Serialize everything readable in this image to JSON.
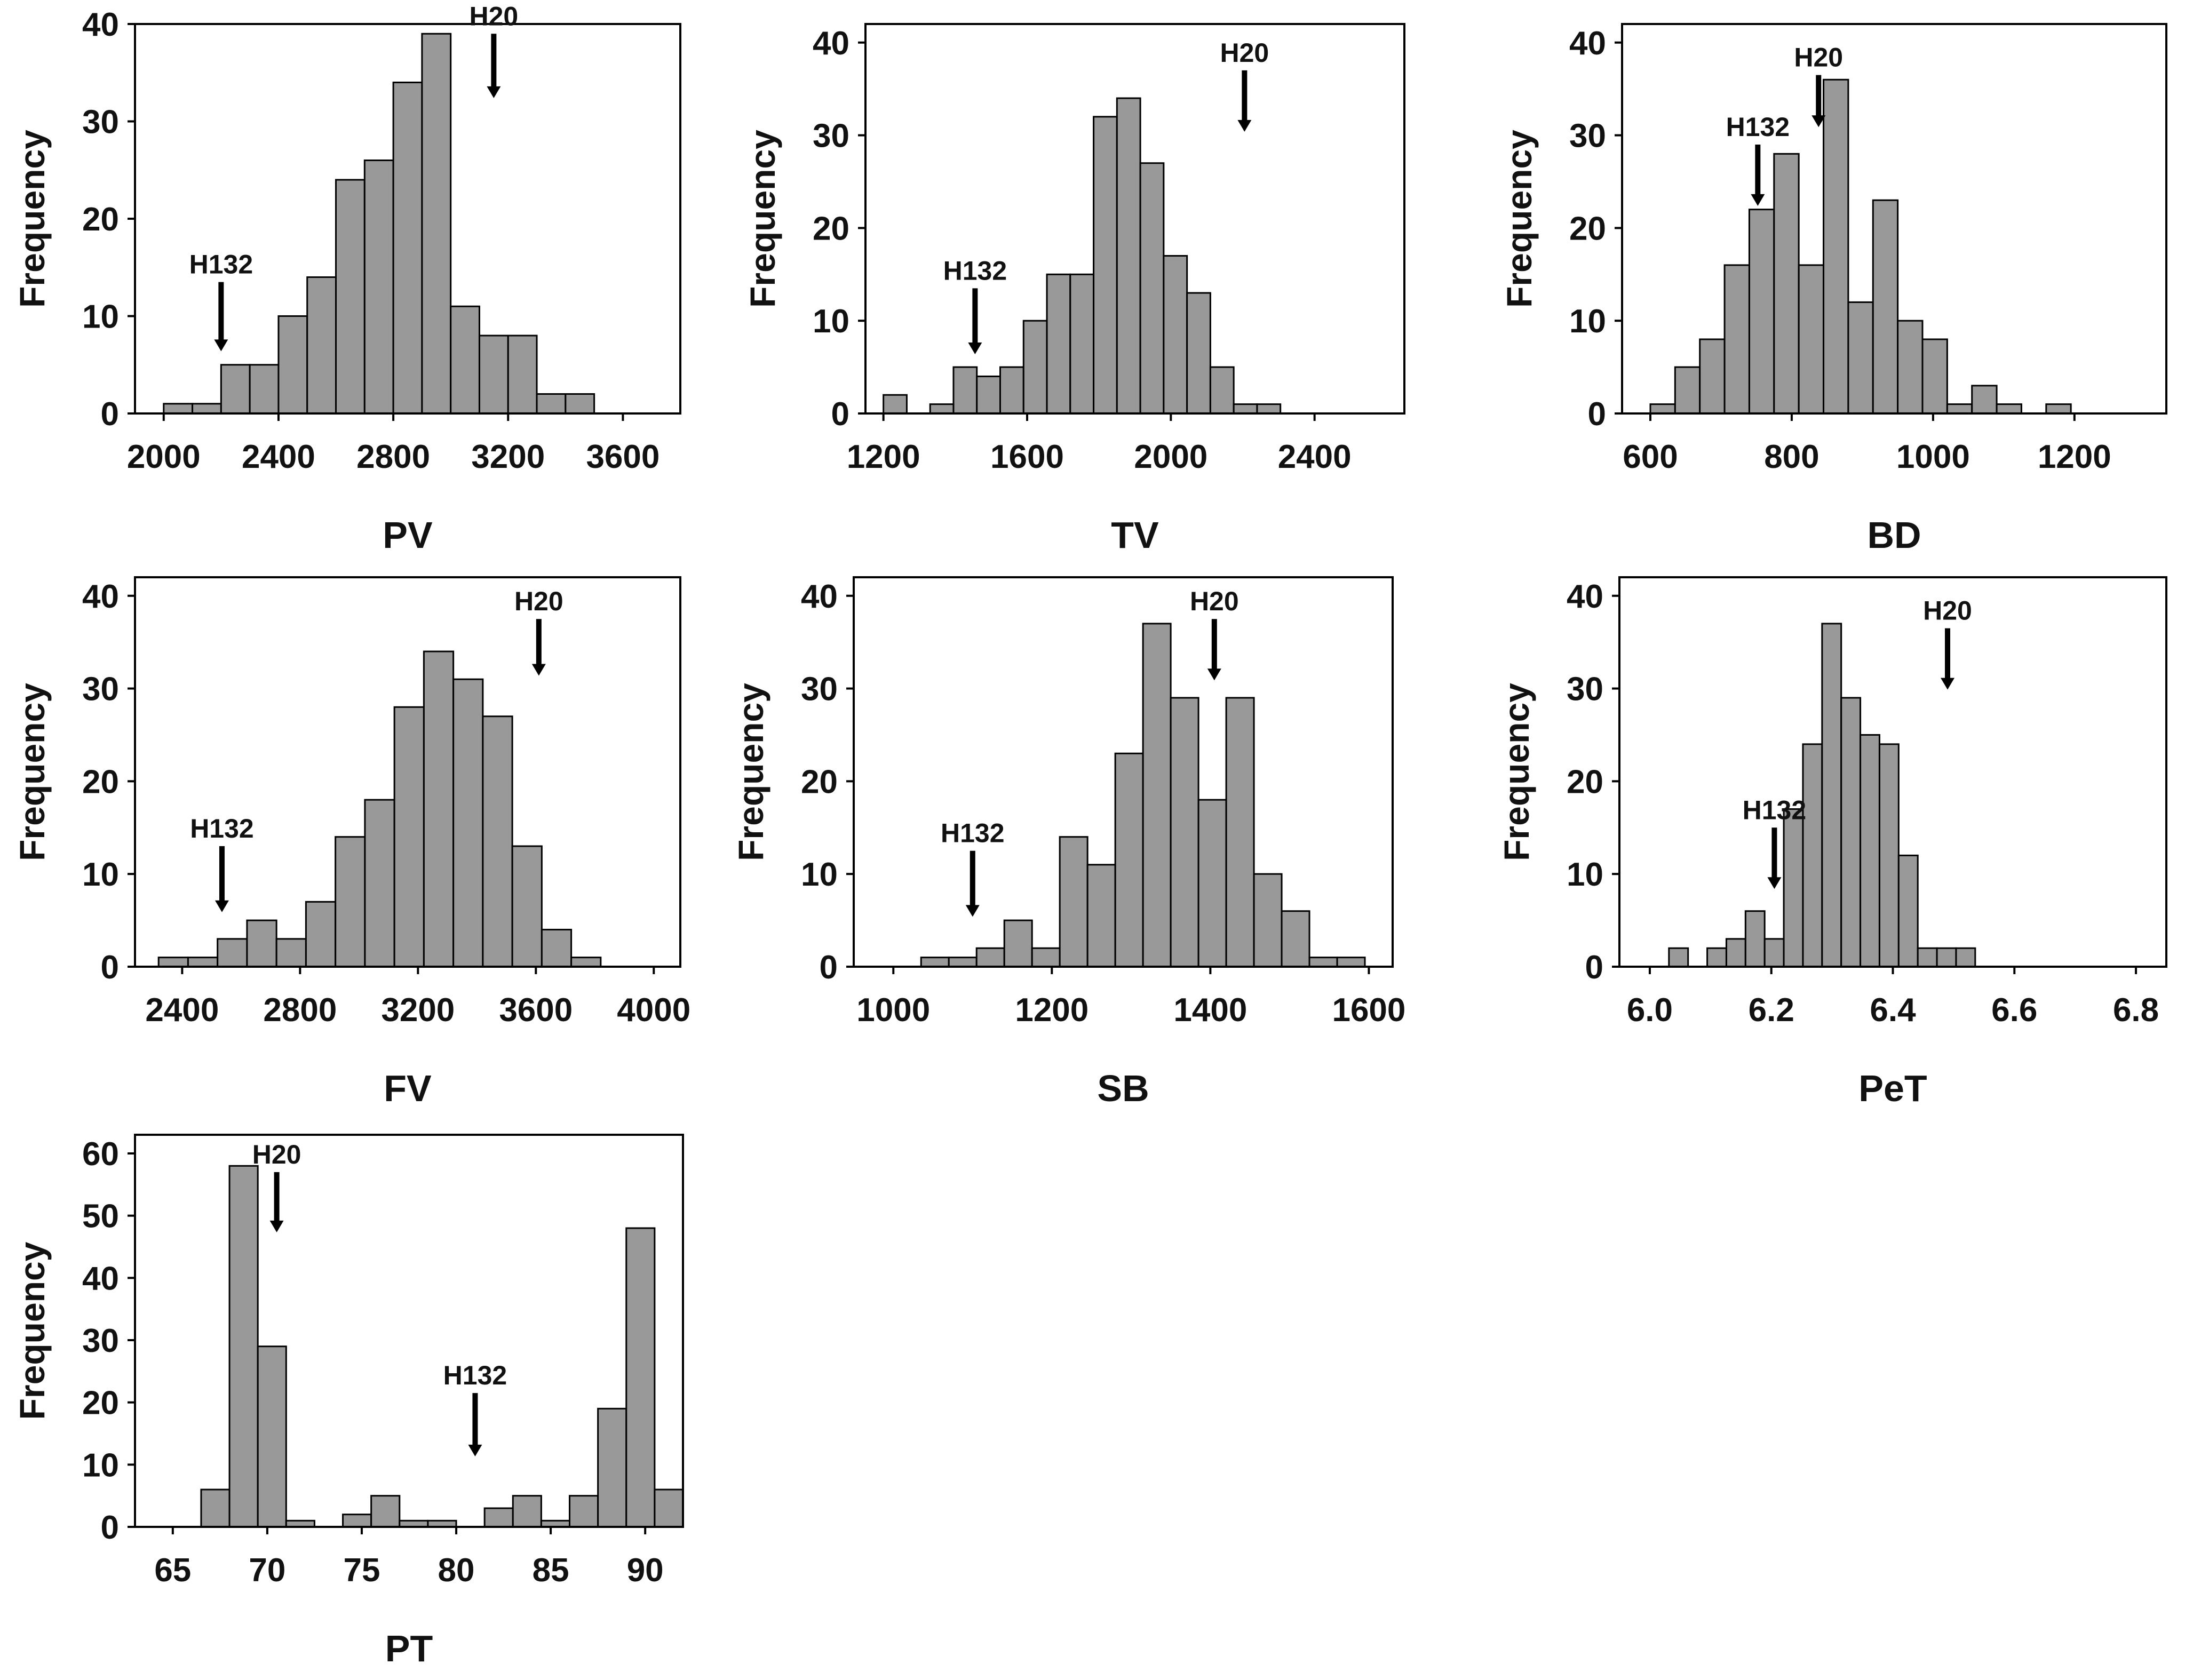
{
  "chart_data": [
    {
      "type": "histogram",
      "xlabel": "PV",
      "ylabel": "Frequency",
      "xlim": [
        1900,
        3800
      ],
      "ylim": [
        0,
        40
      ],
      "xticks": [
        2000,
        2400,
        2800,
        3200,
        3600
      ],
      "yticks": [
        0,
        10,
        20,
        30,
        40
      ],
      "bin_start": 2000,
      "bin_width": 100,
      "values": [
        1,
        1,
        5,
        5,
        10,
        14,
        24,
        26,
        34,
        39,
        11,
        8,
        8,
        2,
        2
      ],
      "annotations": [
        {
          "label": "H132",
          "x": 2200,
          "y_tail": 13.5,
          "y_tip": 6.5
        },
        {
          "label": "H20",
          "x": 3150,
          "y_tail": 39.0,
          "y_tip": 32.5
        }
      ]
    },
    {
      "type": "histogram",
      "xlabel": "TV",
      "ylabel": "Frequency",
      "xlim": [
        1150,
        2650
      ],
      "ylim": [
        0,
        42
      ],
      "xticks": [
        1200,
        1600,
        2000,
        2400
      ],
      "yticks": [
        0,
        10,
        20,
        30,
        40
      ],
      "bin_start": 1200,
      "bin_width": 65,
      "values": [
        2,
        0,
        1,
        5,
        4,
        5,
        10,
        15,
        15,
        32,
        34,
        27,
        17,
        13,
        5,
        1,
        1
      ],
      "annotations": [
        {
          "label": "H132",
          "x": 1455,
          "y_tail": 13.5,
          "y_tip": 6.5
        },
        {
          "label": "H20",
          "x": 2205,
          "y_tail": 37.0,
          "y_tip": 30.5
        }
      ]
    },
    {
      "type": "histogram",
      "xlabel": "BD",
      "ylabel": "Frequency",
      "xlim": [
        560,
        1330
      ],
      "ylim": [
        0,
        42
      ],
      "xticks": [
        600,
        800,
        1000,
        1200
      ],
      "yticks": [
        0,
        10,
        20,
        30,
        40
      ],
      "bin_start": 600,
      "bin_width": 35,
      "values": [
        1,
        5,
        8,
        16,
        22,
        28,
        16,
        36,
        12,
        23,
        10,
        8,
        1,
        3,
        1,
        0,
        1
      ],
      "annotations": [
        {
          "label": "H132",
          "x": 752,
          "y_tail": 29.0,
          "y_tip": 22.5
        },
        {
          "label": "H20",
          "x": 838,
          "y_tail": 36.5,
          "y_tip": 31.0
        }
      ]
    },
    {
      "type": "histogram",
      "xlabel": "FV",
      "ylabel": "Frequency",
      "xlim": [
        2240,
        4090
      ],
      "ylim": [
        0,
        42
      ],
      "xticks": [
        2400,
        2800,
        3200,
        3600,
        4000
      ],
      "yticks": [
        0,
        10,
        20,
        30,
        40
      ],
      "bin_start": 2320,
      "bin_width": 100,
      "values": [
        1,
        1,
        3,
        5,
        3,
        7,
        14,
        18,
        28,
        34,
        31,
        27,
        13,
        4,
        1
      ],
      "annotations": [
        {
          "label": "H132",
          "x": 2535,
          "y_tail": 13.0,
          "y_tip": 6.0
        },
        {
          "label": "H20",
          "x": 3610,
          "y_tail": 37.5,
          "y_tip": 31.5
        }
      ]
    },
    {
      "type": "histogram",
      "xlabel": "SB",
      "ylabel": "Frequency",
      "xlim": [
        950,
        1630
      ],
      "ylim": [
        0,
        42
      ],
      "xticks": [
        1000,
        1200,
        1400,
        1600
      ],
      "yticks": [
        0,
        10,
        20,
        30,
        40
      ],
      "bin_start": 1000,
      "bin_width": 35,
      "values": [
        0,
        1,
        1,
        2,
        5,
        2,
        14,
        11,
        23,
        37,
        29,
        18,
        29,
        10,
        6,
        1,
        1
      ],
      "annotations": [
        {
          "label": "H132",
          "x": 1100,
          "y_tail": 12.5,
          "y_tip": 5.5
        },
        {
          "label": "H20",
          "x": 1405,
          "y_tail": 37.5,
          "y_tip": 31.0
        }
      ]
    },
    {
      "type": "histogram",
      "xlabel": "PeT",
      "ylabel": "Frequency",
      "xlim": [
        5.95,
        6.85
      ],
      "ylim": [
        0,
        42
      ],
      "xticks": [
        6.0,
        6.2,
        6.4,
        6.6,
        6.8
      ],
      "xtick_labels": [
        "6.0",
        "6.2",
        "6.4",
        "6.6",
        "6.8"
      ],
      "yticks": [
        0,
        10,
        20,
        30,
        40
      ],
      "bin_start": 6.0,
      "bin_width": 0.0315,
      "values": [
        0,
        2,
        0,
        2,
        3,
        6,
        3,
        17,
        24,
        37,
        29,
        25,
        24,
        12,
        2,
        2,
        2
      ],
      "annotations": [
        {
          "label": "H132",
          "x": 6.205,
          "y_tail": 15.0,
          "y_tip": 8.5
        },
        {
          "label": "H20",
          "x": 6.49,
          "y_tail": 36.5,
          "y_tip": 30.0
        }
      ]
    },
    {
      "type": "histogram",
      "xlabel": "PT",
      "ylabel": "Frequency",
      "xlim": [
        63,
        92
      ],
      "ylim": [
        0,
        63
      ],
      "xticks": [
        65,
        70,
        75,
        80,
        85,
        90
      ],
      "yticks": [
        0,
        10,
        20,
        30,
        40,
        50,
        60
      ],
      "bin_start": 65,
      "bin_width": 1.5,
      "values": [
        0,
        6,
        58,
        29,
        1,
        0,
        2,
        5,
        1,
        1,
        0,
        3,
        5,
        1,
        5,
        19,
        48,
        6
      ],
      "annotations": [
        {
          "label": "H132",
          "x": 81.0,
          "y_tail": 21.5,
          "y_tip": 11.5
        },
        {
          "label": "H20",
          "x": 70.5,
          "y_tail": 57.0,
          "y_tip": 47.5
        }
      ]
    }
  ]
}
